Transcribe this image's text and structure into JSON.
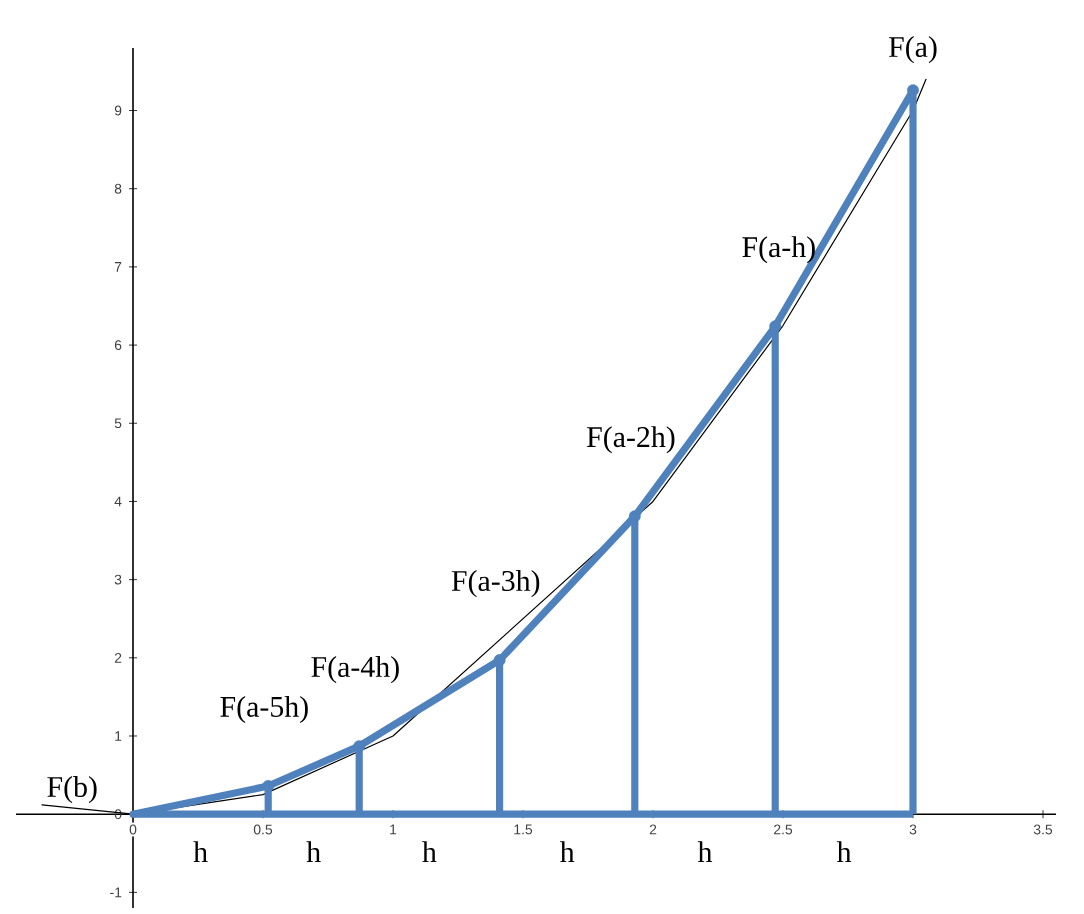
{
  "chart_data": {
    "type": "line",
    "xlim": [
      -0.45,
      3.55
    ],
    "ylim": [
      -1.2,
      9.8
    ],
    "xticks": [
      0,
      0.5,
      1,
      1.5,
      2,
      2.5,
      3,
      3.5
    ],
    "yticks": [
      -1,
      0,
      1,
      2,
      3,
      4,
      5,
      6,
      7,
      8,
      9
    ],
    "series": [
      {
        "color": "#000000",
        "x": [
          -0.35,
          0,
          0.5,
          1,
          2,
          2.5,
          3,
          3.05
        ],
        "values": [
          0.12,
          0,
          0.25,
          1,
          4,
          6.25,
          9,
          9.4
        ]
      },
      {
        "color": "#4f81bd",
        "x": [
          0,
          0.52,
          0.87,
          1.41,
          1.93,
          2.47,
          3
        ],
        "values": [
          0,
          0.36,
          0.87,
          1.97,
          3.81,
          6.24,
          9.26
        ]
      },
      {
        "type": "lollipop",
        "color": "#4f81bd",
        "x": [
          0.52,
          0.87,
          1.41,
          1.93,
          2.47,
          3
        ],
        "values": [
          0.36,
          0.87,
          1.97,
          3.81,
          6.24,
          9.26
        ]
      }
    ],
    "annotations": [
      {
        "text": "F(b)",
        "x": 0,
        "y": 0
      },
      {
        "text": "F(a-5h)",
        "x": 0.52,
        "y": 0.36
      },
      {
        "text": "F(a-4h)",
        "x": 0.87,
        "y": 0.87
      },
      {
        "text": "F(a-3h)",
        "x": 1.41,
        "y": 1.97
      },
      {
        "text": "F(a-2h)",
        "x": 1.93,
        "y": 3.81
      },
      {
        "text": "F(a-h)",
        "x": 2.47,
        "y": 6.24
      },
      {
        "text": "F(a)",
        "x": 3,
        "y": 9.26
      },
      "h",
      "h",
      "h",
      "h",
      "h",
      "h"
    ]
  }
}
